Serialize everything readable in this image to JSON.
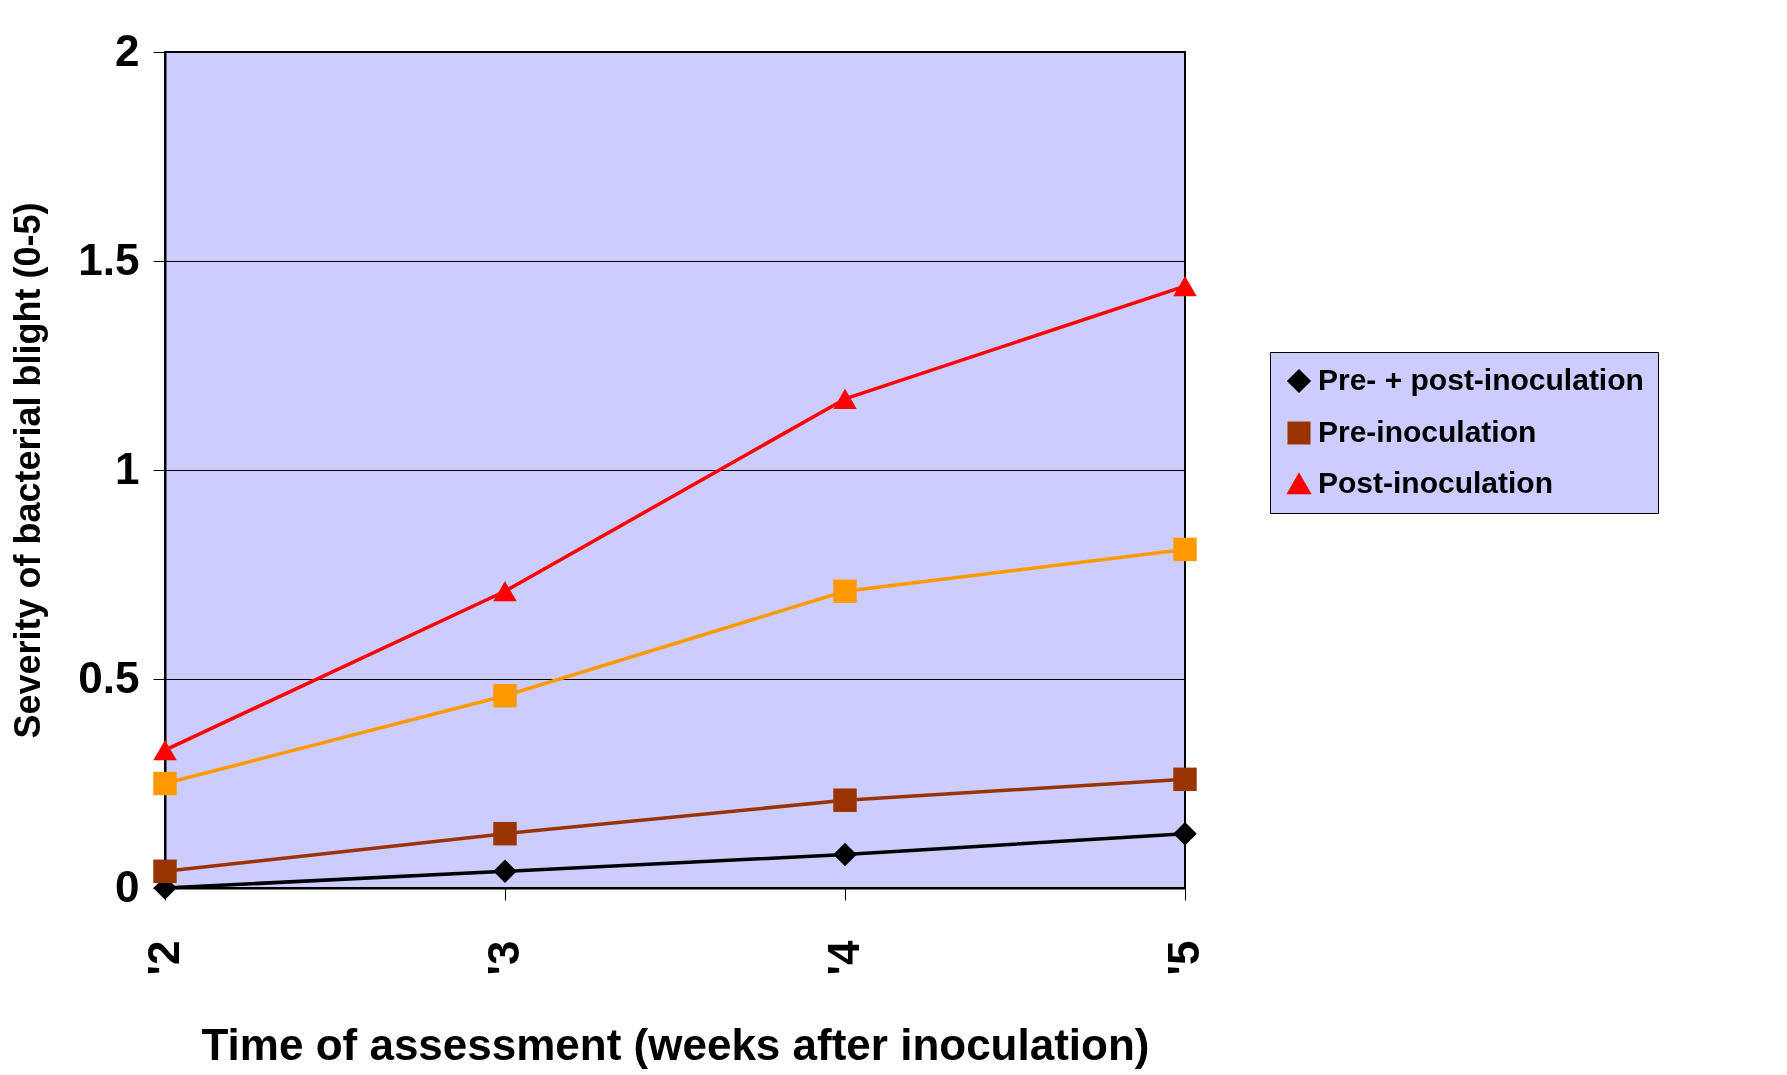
{
  "chart_data": {
    "type": "line",
    "xlabel": "Time of assessment (weeks after inoculation)",
    "ylabel": "Severity of bacterial blight (0-5)",
    "categories": [
      "'2",
      "'3",
      "'4",
      "'5"
    ],
    "series": [
      {
        "name": "Pre- + post-inoculation",
        "color": "#000000",
        "marker": "diamond",
        "values": [
          0,
          0.04,
          0.08,
          0.13
        ]
      },
      {
        "name": "Pre-inoculation",
        "color": "#993300",
        "marker": "square",
        "values": [
          0.04,
          0.13,
          0.21,
          0.26
        ]
      },
      {
        "name": "Post-inoculation",
        "color": "#ff0000",
        "marker": "triangle",
        "values": [
          0.33,
          0.71,
          1.17,
          1.44
        ]
      },
      {
        "color": "#ff9900",
        "marker": "square",
        "values": [
          0.25,
          0.46,
          0.71,
          0.81
        ]
      }
    ],
    "ylim": [
      0,
      2
    ],
    "yticks": [
      0,
      0.5,
      1,
      1.5,
      2
    ],
    "grid": "y",
    "legend": "right",
    "line_style": "solid"
  }
}
